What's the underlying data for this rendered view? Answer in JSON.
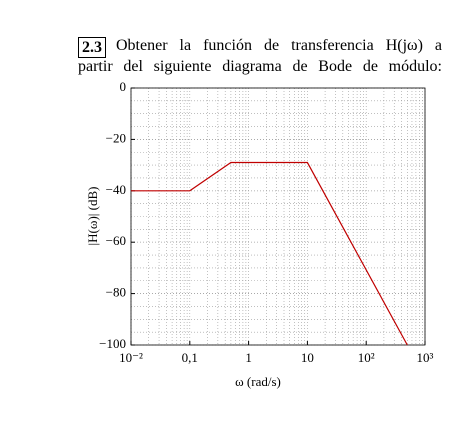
{
  "problem": {
    "number": "2.3",
    "line1": "Obtener la función de transferencia H(jω) a",
    "line2": "partir del siguiente diagrama de Bode de módulo:"
  },
  "chart_data": {
    "type": "line",
    "x": [
      0.01,
      0.1,
      0.5,
      10,
      500
    ],
    "values": [
      -40,
      -40,
      -29,
      -29,
      -100
    ],
    "color": "#c00000",
    "xlabel": "ω (rad/s)",
    "ylabel": "|H(ω)| (dB)",
    "xscale": "log",
    "grid": true,
    "xlim": [
      0.01,
      1000
    ],
    "xticks": [
      {
        "value": 0.01,
        "label": "10⁻²"
      },
      {
        "value": 0.1,
        "label": "0,1"
      },
      1,
      10,
      {
        "value": 100,
        "label": "10²"
      },
      {
        "value": 1000,
        "label": "10³"
      }
    ],
    "ylim": [
      -100,
      0
    ],
    "yticks": [
      0,
      {
        "value": -20,
        "label": "−20"
      },
      {
        "value": -40,
        "label": "−40"
      },
      {
        "value": -60,
        "label": "−60"
      },
      {
        "value": -80,
        "label": "−80"
      },
      {
        "value": -100,
        "label": "−100"
      }
    ]
  }
}
